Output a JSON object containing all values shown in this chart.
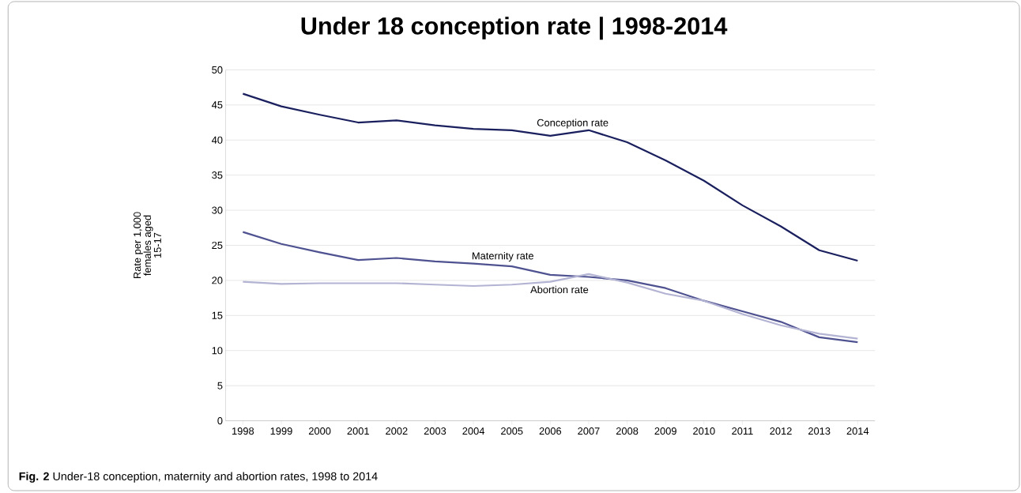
{
  "chart_data": {
    "type": "line",
    "title": "Under 18 conception rate | 1998-2014",
    "ylabel": "Rate per 1,000 females aged 15-17",
    "categories": [
      "1998",
      "1999",
      "2000",
      "2001",
      "2002",
      "2003",
      "2004",
      "2005",
      "2006",
      "2007",
      "2008",
      "2009",
      "2010",
      "2011",
      "2012",
      "2013",
      "2014"
    ],
    "series": [
      {
        "name": "Conception rate",
        "color": "#1a1f5e",
        "values": [
          46.6,
          44.8,
          43.6,
          42.5,
          42.8,
          42.1,
          41.6,
          41.4,
          40.6,
          41.4,
          39.7,
          37.1,
          34.2,
          30.7,
          27.7,
          24.3,
          22.8
        ]
      },
      {
        "name": "Maternity rate",
        "color": "#4f5290",
        "values": [
          26.9,
          25.2,
          24.0,
          22.9,
          23.2,
          22.7,
          22.4,
          22.0,
          20.8,
          20.5,
          20.0,
          18.9,
          17.1,
          15.6,
          14.1,
          11.9,
          11.2
        ]
      },
      {
        "name": "Abortion rate",
        "color": "#b3b3d3",
        "values": [
          19.8,
          19.5,
          19.6,
          19.6,
          19.6,
          19.4,
          19.2,
          19.4,
          19.8,
          20.9,
          19.7,
          18.1,
          17.1,
          15.2,
          13.6,
          12.4,
          11.7
        ]
      }
    ],
    "ylim": [
      0,
      50
    ],
    "yticks": [
      0,
      5,
      10,
      15,
      20,
      25,
      30,
      35,
      40,
      45,
      50
    ],
    "grid": "y",
    "legend": false,
    "marker": "none",
    "line_style": "solid",
    "annotations": [
      "**Fig. 2** Under-18 conception, maternity and abortion rates, 1998 to 2014"
    ]
  }
}
